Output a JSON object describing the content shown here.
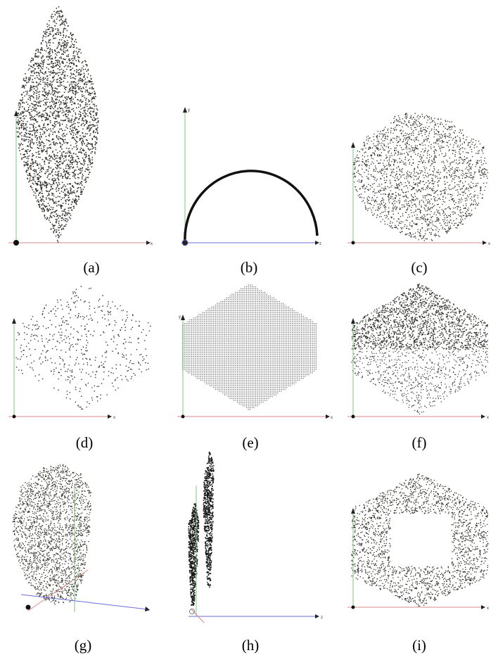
{
  "figure": {
    "panels": [
      {
        "id": "a",
        "caption": "(a)",
        "axes": {
          "h": "x",
          "v": ""
        },
        "shape": "lens / double-cone point cloud, dense"
      },
      {
        "id": "b",
        "caption": "(b)",
        "axes": {
          "h": "z",
          "v": "y"
        },
        "shape": "semicircular arc"
      },
      {
        "id": "c",
        "caption": "(c)",
        "axes": {
          "h": "x",
          "v": ""
        },
        "shape": "irregular blob point cloud"
      },
      {
        "id": "d",
        "caption": "(d)",
        "axes": {
          "h": "x",
          "v": ""
        },
        "shape": "sparse hexagonal point cloud"
      },
      {
        "id": "e",
        "caption": "(e)",
        "axes": {
          "h": "x",
          "v": "y"
        },
        "shape": "regular grid hexagon"
      },
      {
        "id": "f",
        "caption": "(f)",
        "axes": {
          "h": "x",
          "v": ""
        },
        "shape": "hexagon dense top, sparse bottom"
      },
      {
        "id": "g",
        "caption": "(g)",
        "axes": {
          "h": "",
          "v": ""
        },
        "shape": "3D perspective point cloud"
      },
      {
        "id": "h",
        "caption": "(h)",
        "axes": {
          "h": "z",
          "v": ""
        },
        "shape": "two thin slanted point slabs"
      },
      {
        "id": "i",
        "caption": "(i)",
        "axes": {
          "h": "x",
          "v": ""
        },
        "shape": "hexagon with square hole"
      }
    ]
  }
}
